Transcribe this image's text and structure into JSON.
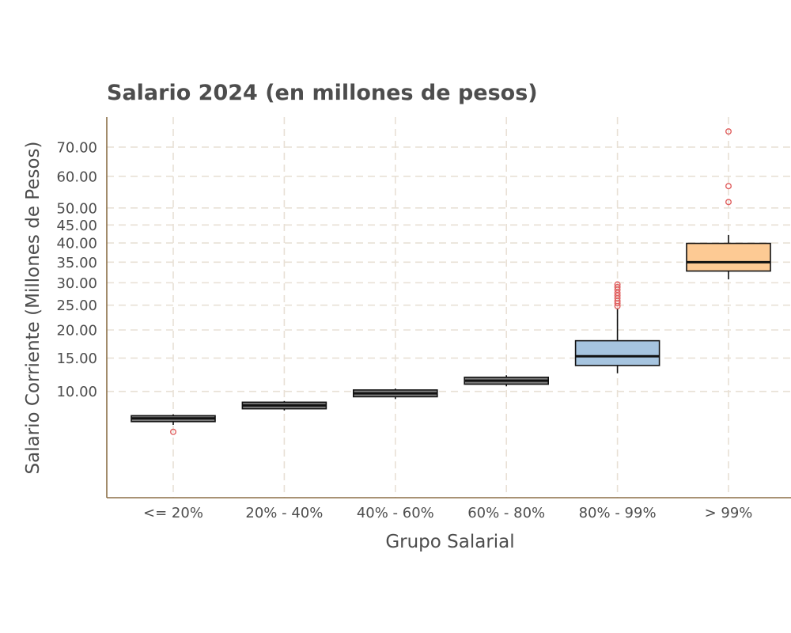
{
  "chart_data": {
    "type": "box",
    "title": "Salario 2024 (en millones de pesos)",
    "xlabel": "Grupo Salarial",
    "ylabel": "Salario Corriente (Millones de Pesos)",
    "y_ticks": [
      10,
      15,
      20,
      25,
      30,
      35,
      40,
      45,
      50,
      60,
      70
    ],
    "y_tick_labels": [
      "10.00",
      "15.00",
      "20.00",
      "25.00",
      "30.00",
      "35.00",
      "40.00",
      "45.00",
      "50.00",
      "60.00",
      "70.00"
    ],
    "ylim": [
      1.0,
      79.0
    ],
    "y_scale": "sqrt",
    "grid": true,
    "categories": [
      "<= 20%",
      "20% - 40%",
      "40% - 60%",
      "60% - 80%",
      "80% - 99%",
      "> 99%"
    ],
    "boxes": [
      {
        "category": "<= 20%",
        "min": 6.0,
        "q1": 6.35,
        "median": 6.7,
        "q3": 7.0,
        "max": 7.15,
        "outliers": [
          5.3
        ],
        "fill": "#7f7f7f"
      },
      {
        "category": "20% - 40%",
        "min": 7.6,
        "q1": 7.8,
        "median": 8.2,
        "q3": 8.6,
        "max": 8.75,
        "outliers": [],
        "fill": "#7f7f7f"
      },
      {
        "category": "40% - 60%",
        "min": 9.0,
        "q1": 9.3,
        "median": 9.75,
        "q3": 10.2,
        "max": 10.4,
        "outliers": [],
        "fill": "#7f7f7f"
      },
      {
        "category": "60% - 80%",
        "min": 10.7,
        "q1": 11.0,
        "median": 11.5,
        "q3": 12.0,
        "max": 12.3,
        "outliers": [],
        "fill": "#7f7f7f"
      },
      {
        "category": "80% - 99%",
        "min": 12.6,
        "q1": 13.8,
        "median": 15.3,
        "q3": 18.0,
        "max": 24.2,
        "outliers": [
          24.8,
          25.4,
          25.9,
          26.5,
          27.1,
          27.7,
          28.4,
          29.0,
          29.6
        ],
        "fill": "#a6c4df"
      },
      {
        "category": "> 99%",
        "min": 30.8,
        "q1": 32.8,
        "median": 35.0,
        "q3": 39.9,
        "max": 42.2,
        "outliers": [
          51.8,
          56.8,
          75.7
        ],
        "fill": "#fdca94"
      }
    ],
    "colors": {
      "text": "#4d4d4d",
      "axis": "#8b6f47",
      "grid": "#e8e0d5",
      "box_stroke": "#111111",
      "outlier": "#e06060"
    }
  }
}
